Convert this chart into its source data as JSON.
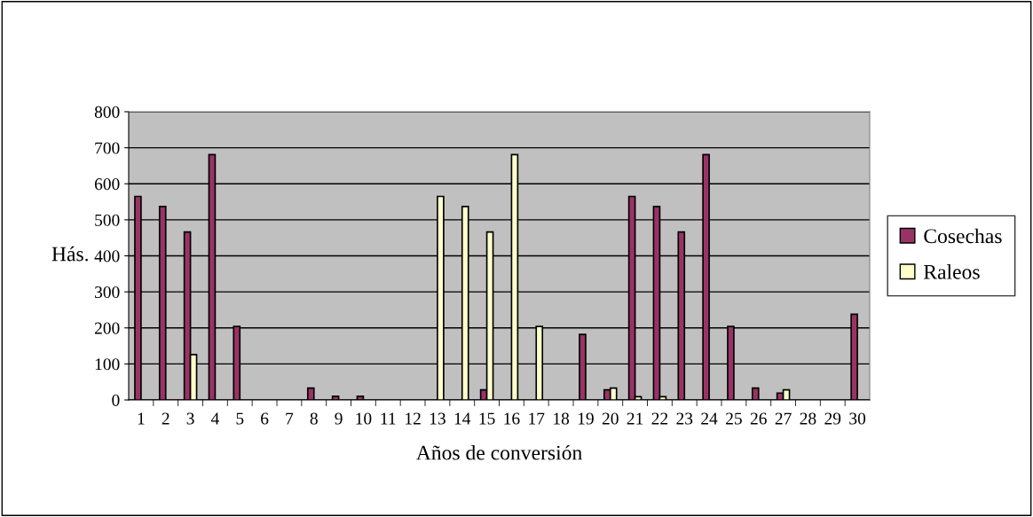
{
  "chart_data": {
    "type": "bar",
    "xlabel": "Años de conversión",
    "ylabel": "Hás.",
    "categories": [
      "1",
      "2",
      "3",
      "4",
      "5",
      "6",
      "7",
      "8",
      "9",
      "10",
      "11",
      "12",
      "13",
      "14",
      "15",
      "16",
      "17",
      "18",
      "19",
      "20",
      "21",
      "22",
      "23",
      "24",
      "25",
      "26",
      "27",
      "28",
      "29",
      "30"
    ],
    "series": [
      {
        "name": "Cosechas",
        "color": "#993366",
        "values": [
          565,
          537,
          466,
          681,
          204,
          0,
          0,
          33,
          10,
          10,
          0,
          0,
          0,
          0,
          28,
          0,
          0,
          0,
          182,
          28,
          565,
          537,
          466,
          681,
          204,
          33,
          19,
          0,
          0,
          238
        ]
      },
      {
        "name": "Raleos",
        "color": "#ffffcc",
        "values": [
          0,
          0,
          126,
          0,
          0,
          0,
          0,
          0,
          0,
          0,
          0,
          0,
          565,
          537,
          466,
          681,
          204,
          0,
          0,
          33,
          9,
          9,
          0,
          0,
          0,
          0,
          28,
          0,
          0,
          0
        ]
      }
    ],
    "ylim": [
      0,
      800
    ],
    "yticks": [
      0,
      100,
      200,
      300,
      400,
      500,
      600,
      700,
      800
    ],
    "grid": "y",
    "legend": "right"
  }
}
